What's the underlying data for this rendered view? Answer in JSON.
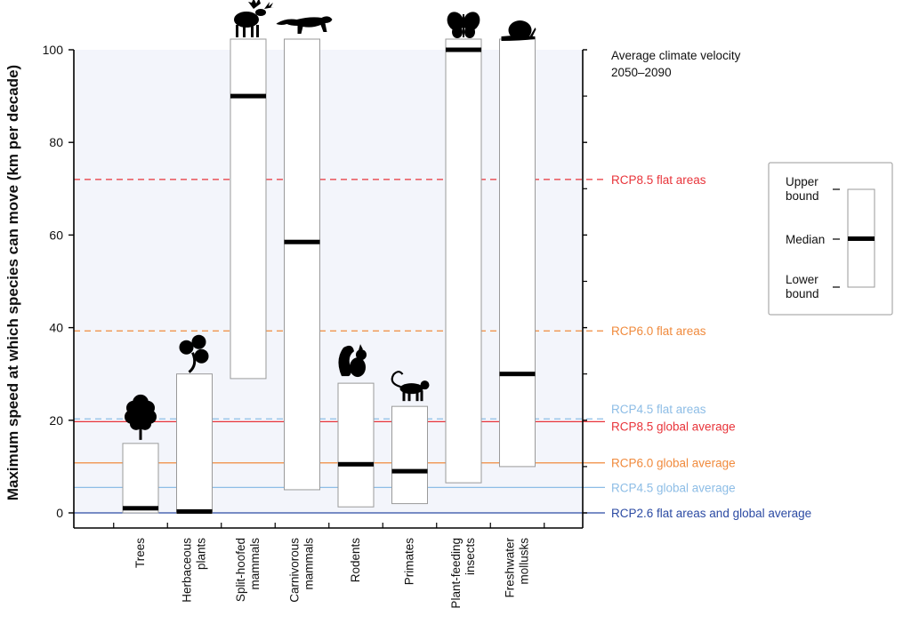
{
  "chart_data": {
    "type": "bar",
    "subtype": "floating-range",
    "ylabel": "Maximum speed at which species can move (km per decade)",
    "ylim": [
      0,
      100
    ],
    "yticks": [
      0,
      20,
      40,
      60,
      80,
      100
    ],
    "plot_background": "#f3f5fb",
    "categories": [
      {
        "label": "Trees",
        "lower": 0,
        "median": 1,
        "upper": 15,
        "icon": "tree-icon"
      },
      {
        "label": "Herbaceous plants",
        "lower": 0,
        "median": 0.3,
        "upper": 30,
        "icon": "clover-icon"
      },
      {
        "label": "Split-hoofed mammals",
        "lower": 29,
        "median": 90,
        "upper": 100,
        "icon": "moose-icon"
      },
      {
        "label": "Carnivorous mammals",
        "lower": 5,
        "median": 58.5,
        "upper": 100,
        "icon": "big-cat-icon"
      },
      {
        "label": "Rodents",
        "lower": 1.3,
        "median": 10.5,
        "upper": 28,
        "icon": "squirrel-icon"
      },
      {
        "label": "Primates",
        "lower": 2,
        "median": 9,
        "upper": 23,
        "icon": "monkey-icon"
      },
      {
        "label": "Plant-feeding insects",
        "lower": 6.5,
        "median": 100,
        "upper": 100,
        "icon": "butterfly-icon"
      },
      {
        "label": "Freshwater mollusks",
        "lower": 10,
        "median": 30,
        "upper": 100,
        "icon": "snail-icon"
      }
    ],
    "reference_title": "Average climate velocity\n2050–2090",
    "reference_lines": [
      {
        "label": "RCP8.5 flat areas",
        "value": 72,
        "dashed": true,
        "color": "#e8343a"
      },
      {
        "label": "RCP6.0 flat areas",
        "value": 39.3,
        "dashed": true,
        "color": "#f08a3c"
      },
      {
        "label": "RCP4.5 flat areas",
        "value": 20.3,
        "dashed": true,
        "color": "#8dbde6"
      },
      {
        "label": "RCP8.5 global average",
        "value": 19.7,
        "dashed": false,
        "color": "#e8343a"
      },
      {
        "label": "RCP6.0 global average",
        "value": 10.8,
        "dashed": false,
        "color": "#f08a3c"
      },
      {
        "label": "RCP4.5 global average",
        "value": 5.5,
        "dashed": false,
        "color": "#8dbde6"
      },
      {
        "label": "RCP2.6  flat areas and global average",
        "value": 0,
        "dashed": false,
        "color": "#2b4aa3"
      }
    ],
    "legend": {
      "position": "right",
      "upper": "Upper\nbound",
      "median": "Median",
      "lower": "Lower\nbound"
    }
  }
}
